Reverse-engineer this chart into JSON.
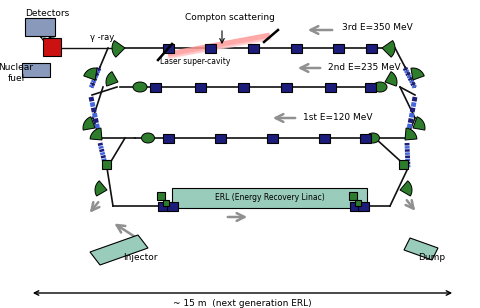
{
  "bg_color": "#ffffff",
  "fig_width": 4.8,
  "fig_height": 3.08,
  "dpi": 100,
  "title": "~ 15 m  (next generation ERL)",
  "labels": {
    "detectors": "Detectors",
    "compton": "Compton scattering",
    "gamma": "γ -ray",
    "laser": "Laser super-cavity",
    "nuclear": "Nuclear\nfuel",
    "erl": "ERL (Energy Recovery Linac)",
    "injector": "Injector",
    "dump": "Dump",
    "e3rd": "3rd E=350 MeV",
    "e2nd": "2nd E=235 MeV",
    "e1st": "1st E=120 MeV"
  },
  "colors": {
    "green": "#2d7d2d",
    "dark_navy": "#1c1c7a",
    "blue_dashes": "#4466dd",
    "red": "#cc1111",
    "blue_gray": "#8899bb",
    "teal": "#99ccbb",
    "pink": "#ff9999",
    "gray": "#909090",
    "line_color": "#111111"
  }
}
